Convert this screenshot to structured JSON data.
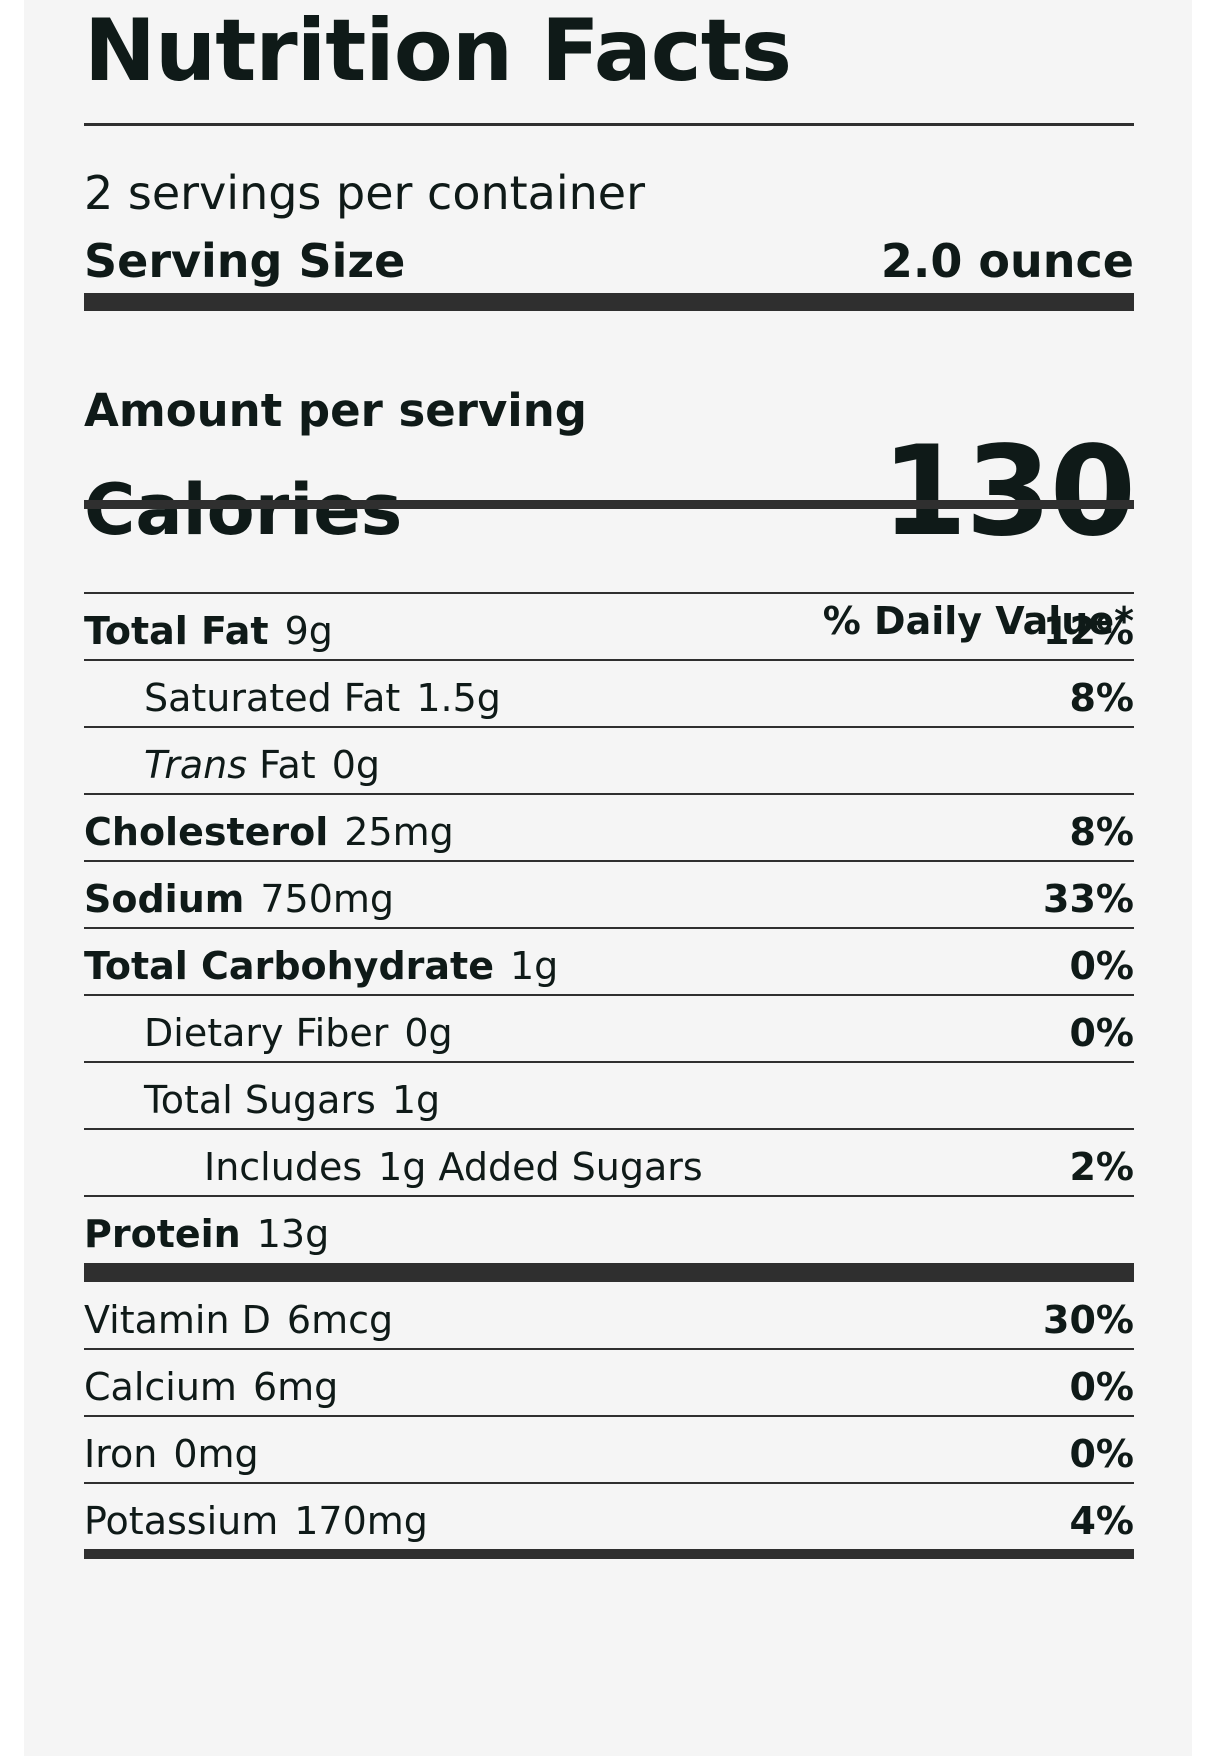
{
  "title": "Nutrition Facts",
  "servings_per_container": "2 servings per container",
  "serving_size": {
    "label": "Serving Size",
    "value": "2.0 ounce"
  },
  "amount_per_serving": "Amount per serving",
  "calories": {
    "label": "Calories",
    "value": "130"
  },
  "daily_value_header": "% Daily Value*",
  "nutrients": [
    {
      "name": "Total Fat",
      "amount": "9g",
      "dv": "12%"
    },
    {
      "name": "Saturated Fat",
      "amount": "1.5g",
      "dv": "8%"
    },
    {
      "name_italic": "Trans",
      "name_rest": " Fat",
      "amount": "0g",
      "dv": ""
    },
    {
      "name": "Cholesterol",
      "amount": "25mg",
      "dv": "8%"
    },
    {
      "name": "Sodium",
      "amount": "750mg",
      "dv": "33%"
    },
    {
      "name": "Total Carbohydrate",
      "amount": "1g",
      "dv": "0%"
    },
    {
      "name": "Dietary Fiber",
      "amount": "0g",
      "dv": "0%"
    },
    {
      "name": "Total Sugars",
      "amount": "1g",
      "dv": ""
    },
    {
      "name": "Includes",
      "amount": "1g Added Sugars",
      "dv": "2%"
    },
    {
      "name": "Protein",
      "amount": "13g",
      "dv": ""
    }
  ],
  "micronutrients": [
    {
      "name": "Vitamin D",
      "amount": "6mcg",
      "dv": "30%"
    },
    {
      "name": "Calcium",
      "amount": "6mg",
      "dv": "0%"
    },
    {
      "name": "Iron",
      "amount": "0mg",
      "dv": "0%"
    },
    {
      "name": "Potassium",
      "amount": "170mg",
      "dv": "4%"
    }
  ]
}
